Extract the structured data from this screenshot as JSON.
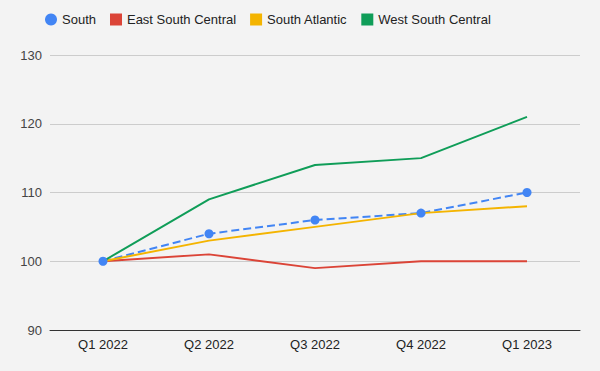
{
  "chart_data": {
    "type": "line",
    "categories": [
      "Q1 2022",
      "Q2 2022",
      "Q3 2022",
      "Q4 2022",
      "Q1 2023"
    ],
    "series": [
      {
        "name": "South",
        "color": "#4285f4",
        "marker": "circle",
        "line_style": "dashed",
        "values": [
          100,
          104,
          106,
          107,
          110
        ]
      },
      {
        "name": "East South Central",
        "color": "#db4437",
        "marker": "none",
        "line_style": "solid",
        "values": [
          100,
          101,
          99,
          100,
          100
        ]
      },
      {
        "name": "South Atlantic",
        "color": "#f4b400",
        "marker": "none",
        "line_style": "solid",
        "values": [
          100,
          103,
          105,
          107,
          108
        ]
      },
      {
        "name": "West South Central",
        "color": "#0f9d58",
        "marker": "none",
        "line_style": "solid",
        "values": [
          100,
          109,
          114,
          115,
          121
        ]
      }
    ],
    "ylim": [
      90,
      130
    ],
    "yticks": [
      90,
      100,
      110,
      120,
      130
    ],
    "grid": true,
    "legend": "top"
  }
}
